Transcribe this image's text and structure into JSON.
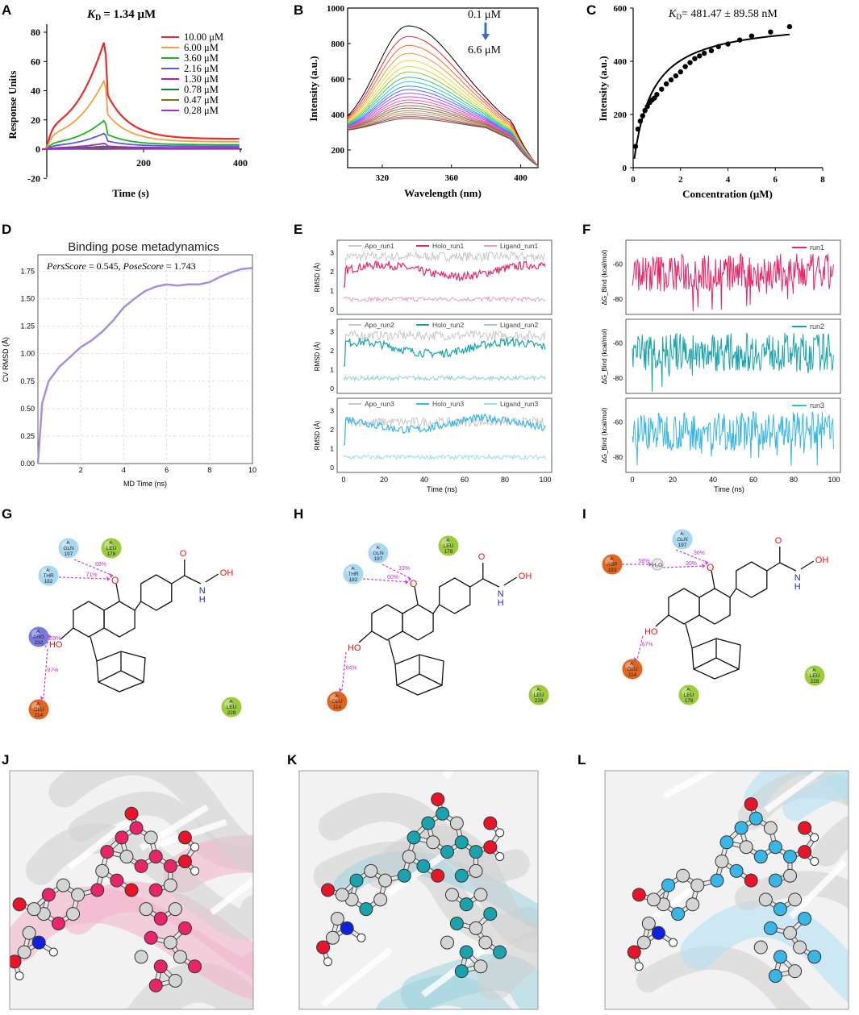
{
  "letters": {
    "a": "A",
    "b": "B",
    "c": "C",
    "d": "D",
    "e": "E",
    "f": "F",
    "g": "G",
    "h": "H",
    "i": "I",
    "j": "J",
    "k": "K",
    "l": "L"
  },
  "panelA": {
    "title": "K_D = 1.34 μM",
    "title_k": "K",
    "title_sub": "D",
    "title_rest": "= 1.34 μM",
    "ylabel": "Response Units",
    "xlabel": "Time (s)",
    "yticks": [
      "-20",
      "0",
      "20",
      "40",
      "60",
      "80"
    ],
    "xticks": [
      "200",
      "400"
    ],
    "legend": [
      {
        "label": "10.00 μM",
        "color": "#ee2b2b"
      },
      {
        "label": "6.00 μM",
        "color": "#f7a03b"
      },
      {
        "label": "3.60 μM",
        "color": "#1db31d"
      },
      {
        "label": "2.16 μM",
        "color": "#5a57e8"
      },
      {
        "label": "1.30 μM",
        "color": "#b11ad6"
      },
      {
        "label": "0.78 μM",
        "color": "#0b7d3a"
      },
      {
        "label": "0.47 μM",
        "color": "#8a6d10"
      },
      {
        "label": "0.28 μM",
        "color": "#a82cc9"
      }
    ]
  },
  "panelB": {
    "ylabel": "Intensity (a.u.)",
    "xlabel": "Wavelength (nm)",
    "yticks": [
      "200",
      "400",
      "600",
      "800",
      "1000"
    ],
    "xticks": [
      "320",
      "360",
      "400"
    ],
    "conc_top": "0.1 μM",
    "conc_bottom": "6.6 μM"
  },
  "panelC": {
    "title": "K_D= 481.47 ± 89.58 nM",
    "title_k": "K",
    "title_sub": "D",
    "title_rest": "= 481.47 ± 89.58 nM",
    "ylabel": "Intensity (a.u.)",
    "xlabel": "Concentration (μM)",
    "yticks": [
      "0",
      "200",
      "400",
      "600"
    ],
    "xticks": [
      "0",
      "2",
      "4",
      "6",
      "8"
    ],
    "chart_data": {
      "type": "scatter",
      "x": [
        0.1,
        0.2,
        0.3,
        0.4,
        0.5,
        0.6,
        0.7,
        0.8,
        0.9,
        1.0,
        1.2,
        1.4,
        1.6,
        1.8,
        2.0,
        2.2,
        2.4,
        2.6,
        2.8,
        3.0,
        3.3,
        3.6,
        4.0,
        4.5,
        5.0,
        5.8,
        6.6
      ],
      "y": [
        80,
        145,
        175,
        195,
        215,
        230,
        245,
        255,
        262,
        275,
        295,
        315,
        330,
        345,
        360,
        380,
        395,
        410,
        420,
        430,
        440,
        455,
        465,
        480,
        495,
        510,
        530
      ],
      "xlim": [
        0,
        8
      ],
      "ylim": [
        0,
        600
      ]
    }
  },
  "panelD": {
    "title": "Binding pose metadynamics",
    "annotation_a": "PersScore",
    "annotation_av": "= 0.545,",
    "annotation_b": "PoseScore",
    "annotation_bv": "= 1.743",
    "ylabel": "CV RMSD (Å)",
    "xlabel": "MD Time (ns)",
    "yticks": [
      "0.00",
      "0.25",
      "0.50",
      "0.75",
      "1.00",
      "1.25",
      "1.50",
      "1.75"
    ],
    "xticks": [
      "2",
      "4",
      "6",
      "8",
      "10"
    ],
    "chart_data": {
      "type": "line",
      "x": [
        0,
        0.2,
        0.5,
        1,
        1.5,
        2,
        2.5,
        3,
        3.5,
        4,
        4.5,
        5,
        5.5,
        6,
        6.5,
        7,
        7.5,
        8,
        8.5,
        9,
        9.5,
        10
      ],
      "y": [
        0,
        0.55,
        0.75,
        0.88,
        0.97,
        1.06,
        1.12,
        1.2,
        1.3,
        1.42,
        1.5,
        1.57,
        1.61,
        1.63,
        1.62,
        1.63,
        1.63,
        1.65,
        1.7,
        1.74,
        1.77,
        1.78
      ],
      "xlim": [
        0,
        10
      ],
      "ylim": [
        0,
        1.9
      ]
    }
  },
  "panelE": {
    "ylabel": "RMSD (Å)",
    "xlabel": "Time (ns)",
    "xticks": [
      "0",
      "20",
      "40",
      "60",
      "80",
      "100"
    ],
    "yticks": [
      "0",
      "1",
      "2",
      "3"
    ],
    "runs": [
      {
        "apo": "Apo_run1",
        "holo": "Holo_run1",
        "lig": "Ligand_run1",
        "color": "#e8266a",
        "light": "#f29bbd"
      },
      {
        "apo": "Apo_run2",
        "holo": "Holo_run2",
        "lig": "Ligand_run2",
        "color": "#1aa3ad",
        "light": "#8fd2d6"
      },
      {
        "apo": "Apo_run3",
        "holo": "Holo_run3",
        "lig": "Ligand_run3",
        "color": "#3ab6e6",
        "light": "#9fdcf4"
      }
    ],
    "apo_color": "#c8c8c8"
  },
  "panelF": {
    "ylabel": "ΔG_Bind (kcal/mol)",
    "xlabel": "Time (ns)",
    "xticks": [
      "0",
      "20",
      "40",
      "60",
      "80",
      "100"
    ],
    "yticks": [
      "-60",
      "-80"
    ],
    "runs": [
      {
        "label": "run1",
        "color": "#e8266a"
      },
      {
        "label": "run2",
        "color": "#1aa3ad"
      },
      {
        "label": "run3",
        "color": "#3ab6e6"
      }
    ]
  },
  "panelG": {
    "residues": [
      {
        "chain": "A:",
        "name": "GLN",
        "num": "197",
        "color": "#a8d8f0"
      },
      {
        "chain": "A:",
        "name": "LEU",
        "num": "178",
        "color": "#9ccc3c"
      },
      {
        "chain": "A:",
        "name": "THR",
        "num": "182",
        "color": "#a8d8f0"
      },
      {
        "chain": "A:",
        "name": "ARG",
        "num": "232",
        "color": "#7a7ae0"
      },
      {
        "chain": "A:",
        "name": "GLU",
        "num": "114",
        "color": "#e0651e"
      },
      {
        "chain": "A:",
        "name": "LEU",
        "num": "228",
        "color": "#9ccc3c"
      }
    ],
    "pcts": [
      "68%",
      "71%",
      "59%",
      "97%"
    ],
    "atoms": {
      "o": "O",
      "oh": "OH",
      "ho": "HO",
      "nh": "N",
      "h": "H"
    }
  },
  "panelH": {
    "residues": [
      {
        "chain": "A:",
        "name": "GLN",
        "num": "197",
        "color": "#a8d8f0"
      },
      {
        "chain": "A:",
        "name": "LEU",
        "num": "178",
        "color": "#9ccc3c"
      },
      {
        "chain": "A:",
        "name": "THR",
        "num": "182",
        "color": "#a8d8f0"
      },
      {
        "chain": "A:",
        "name": "GLU",
        "num": "114",
        "color": "#e0651e"
      },
      {
        "chain": "A:",
        "name": "LEU",
        "num": "228",
        "color": "#9ccc3c"
      }
    ],
    "pcts": [
      "33%",
      "60%",
      "84%"
    ]
  },
  "panelI": {
    "residues": [
      {
        "chain": "A:",
        "name": "GLN",
        "num": "197",
        "color": "#a8d8f0"
      },
      {
        "chain": "A:",
        "name": "ASP",
        "num": "183",
        "color": "#e0651e"
      },
      {
        "chain": "A:",
        "name": "GLU",
        "num": "114",
        "color": "#e0651e"
      },
      {
        "chain": "A:",
        "name": "LEU",
        "num": "178",
        "color": "#9ccc3c"
      },
      {
        "chain": "A:",
        "name": "LEU",
        "num": "228",
        "color": "#9ccc3c"
      }
    ],
    "water": "H₂O",
    "pcts": [
      "58%",
      "36%",
      "30%",
      "67%"
    ]
  },
  "panelJKL": {
    "j_color": "#e8246a",
    "k_color": "#1aa3ad",
    "l_color": "#3ab6e6"
  }
}
